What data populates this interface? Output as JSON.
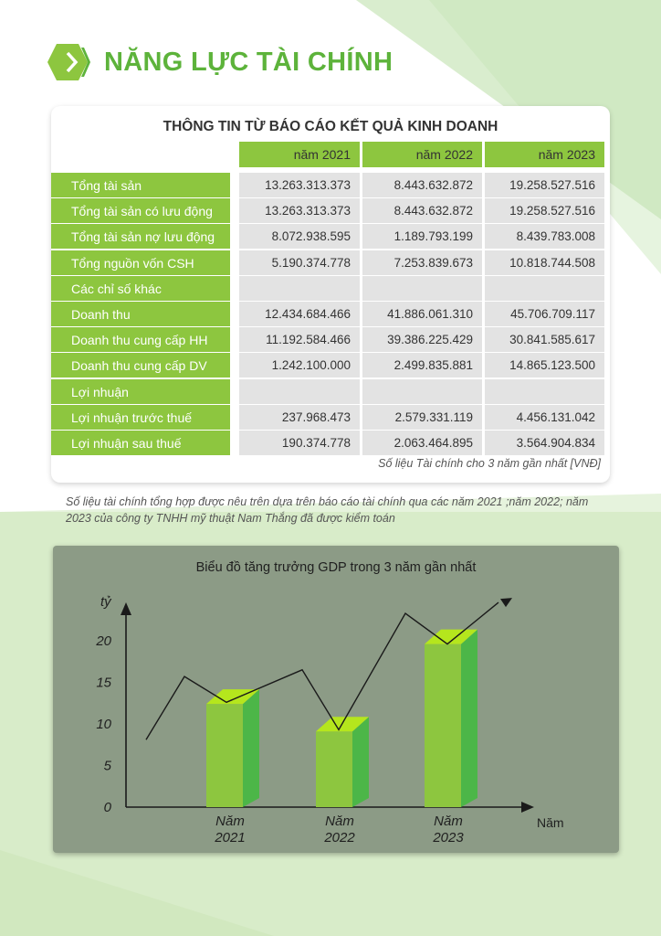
{
  "title": "NĂNG LỰC TÀI CHÍNH",
  "table": {
    "title": "THÔNG TIN TỪ BÁO CÁO KẾT QUẢ KINH DOANH",
    "years": [
      "năm 2021",
      "năm 2022",
      "năm 2023"
    ],
    "rows": [
      {
        "label": "Tổng tài sản",
        "values": [
          "13.263.313.373",
          "8.443.632.872",
          "19.258.527.516"
        ]
      },
      {
        "label": "Tổng tài sản có lưu động",
        "values": [
          "13.263.313.373",
          "8.443.632.872",
          "19.258.527.516"
        ]
      },
      {
        "label": "Tổng tài sản nợ lưu động",
        "values": [
          "8.072.938.595",
          "1.189.793.199",
          "8.439.783.008"
        ]
      },
      {
        "label": "Tổng nguồn vốn CSH",
        "values": [
          "5.190.374.778",
          "7.253.839.673",
          "10.818.744.508"
        ]
      },
      {
        "label": "Các chỉ số khác",
        "values": [
          "",
          "",
          ""
        ]
      },
      {
        "label": "Doanh thu",
        "values": [
          "12.434.684.466",
          "41.886.061.310",
          "45.706.709.117"
        ]
      },
      {
        "label": "Doanh thu cung cấp HH",
        "values": [
          "11.192.584.466",
          "39.386.225.429",
          "30.841.585.617"
        ]
      },
      {
        "label": "Doanh thu cung cấp DV",
        "values": [
          "1.242.100.000",
          "2.499.835.881",
          "14.865.123.500"
        ]
      },
      {
        "label": "Lợi nhuận",
        "values": [
          "",
          "",
          ""
        ]
      },
      {
        "label": "Lợi nhuận trước thuế",
        "values": [
          "237.968.473",
          "2.579.331.119",
          "4.456.131.042"
        ]
      },
      {
        "label": "Lợi nhuận sau thuế",
        "values": [
          "190.374.778",
          "2.063.464.895",
          "3.564.904.834"
        ]
      }
    ],
    "source": "Số liệu Tài chính cho 3 năm gần nhất [VNĐ]"
  },
  "note": "Số liệu tài chính tổng hợp được nêu trên dựa trên báo cáo tài chính qua các năm 2021 ;năm 2022; năm 2023 của công ty TNHH mỹ thuật Nam Thắng đã được kiểm toán",
  "chart_data": {
    "type": "bar",
    "title": "Biểu đồ tăng trưởng GDP trong 3 năm gần nhất",
    "ylabel": "tỷ",
    "xlabel": "Năm",
    "categories": [
      [
        "Năm",
        "2021"
      ],
      [
        "Năm",
        "2022"
      ],
      [
        "Năm",
        "2023"
      ]
    ],
    "values": [
      12.4,
      9.1,
      19.6
    ],
    "yticks": [
      0,
      5,
      10,
      15,
      20
    ],
    "ylim": [
      0,
      24
    ],
    "trend_line": [
      8.1,
      15.7,
      12.6,
      16.5,
      9.3,
      23.3,
      19.6,
      24.6
    ]
  },
  "colors": {
    "green": "#8dc63f",
    "title_green": "#5db33b",
    "bar_front": "#8dc63f",
    "bar_side": "#4cb648",
    "bar_top": "#b5e61d",
    "chart_bg": "#8c9b86",
    "cell_bg": "#e3e3e3"
  }
}
